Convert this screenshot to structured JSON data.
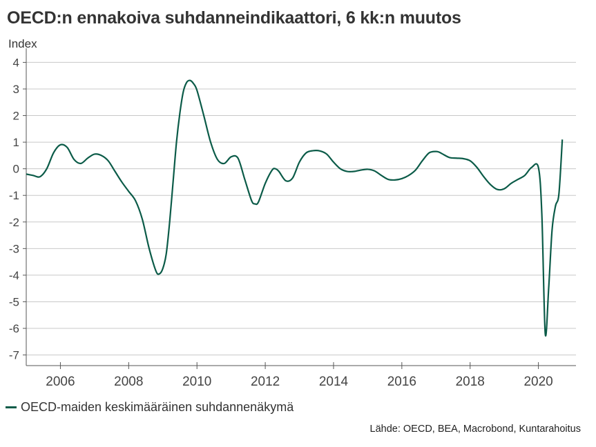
{
  "chart_data": {
    "type": "line",
    "title": "OECD:n ennakoiva suhdanneindikaattori, 6 kk:n muutos",
    "ylabel": "Index",
    "xlabel": "",
    "ylim": [
      -7.4,
      4.4
    ],
    "xlim": [
      2005.0,
      2021.1
    ],
    "yticks": [
      4,
      3,
      2,
      1,
      0,
      -1,
      -2,
      -3,
      -4,
      -5,
      -6,
      -7
    ],
    "ytick_labels": [
      "4",
      "3",
      "2",
      "1",
      "0",
      "-1",
      "-2",
      "-3",
      "-4",
      "-5",
      "-6",
      "-7"
    ],
    "xticks": [
      2006,
      2008,
      2010,
      2012,
      2014,
      2016,
      2018,
      2020
    ],
    "xtick_labels": [
      "2006",
      "2008",
      "2010",
      "2012",
      "2014",
      "2016",
      "2018",
      "2020"
    ],
    "grid": "horizontal",
    "legend_position": "bottom-left",
    "source": "Lähde: OECD, BEA, Macrobond, Kuntarahoitus",
    "series": [
      {
        "name": "OECD-maiden keskimääräinen suhdannenäkymä",
        "color": "#0b5b48",
        "x": [
          2005.0,
          2005.2,
          2005.4,
          2005.6,
          2005.8,
          2006.0,
          2006.2,
          2006.4,
          2006.6,
          2006.8,
          2007.0,
          2007.2,
          2007.4,
          2007.6,
          2007.8,
          2008.0,
          2008.2,
          2008.4,
          2008.6,
          2008.8,
          2008.9,
          2009.0,
          2009.1,
          2009.2,
          2009.3,
          2009.4,
          2009.5,
          2009.6,
          2009.7,
          2009.8,
          2009.9,
          2010.0,
          2010.2,
          2010.4,
          2010.6,
          2010.8,
          2011.0,
          2011.2,
          2011.4,
          2011.6,
          2011.7,
          2011.8,
          2012.0,
          2012.2,
          2012.3,
          2012.4,
          2012.6,
          2012.8,
          2013.0,
          2013.2,
          2013.4,
          2013.6,
          2013.8,
          2014.0,
          2014.2,
          2014.4,
          2014.6,
          2014.8,
          2015.0,
          2015.2,
          2015.4,
          2015.6,
          2015.8,
          2016.0,
          2016.2,
          2016.4,
          2016.6,
          2016.8,
          2017.0,
          2017.1,
          2017.2,
          2017.4,
          2017.6,
          2017.8,
          2018.0,
          2018.2,
          2018.4,
          2018.6,
          2018.8,
          2019.0,
          2019.2,
          2019.4,
          2019.6,
          2019.8,
          2020.0,
          2020.1,
          2020.2,
          2020.3,
          2020.4,
          2020.5,
          2020.6,
          2020.7
        ],
        "values": [
          -0.2,
          -0.25,
          -0.3,
          0.0,
          0.6,
          0.9,
          0.8,
          0.35,
          0.2,
          0.4,
          0.55,
          0.5,
          0.3,
          -0.1,
          -0.5,
          -0.85,
          -1.2,
          -1.9,
          -3.0,
          -3.85,
          -3.95,
          -3.75,
          -3.2,
          -2.0,
          -0.5,
          1.0,
          2.1,
          2.9,
          3.25,
          3.32,
          3.2,
          2.95,
          2.0,
          1.0,
          0.35,
          0.2,
          0.45,
          0.4,
          -0.4,
          -1.2,
          -1.32,
          -1.25,
          -0.55,
          -0.05,
          0.0,
          -0.1,
          -0.45,
          -0.35,
          0.25,
          0.6,
          0.68,
          0.67,
          0.55,
          0.25,
          0.0,
          -0.1,
          -0.1,
          -0.05,
          -0.02,
          -0.08,
          -0.25,
          -0.4,
          -0.42,
          -0.37,
          -0.25,
          -0.05,
          0.3,
          0.6,
          0.65,
          0.62,
          0.55,
          0.42,
          0.4,
          0.38,
          0.3,
          0.05,
          -0.3,
          -0.6,
          -0.78,
          -0.75,
          -0.55,
          -0.4,
          -0.25,
          0.05,
          0.05,
          -1.7,
          -6.2,
          -4.5,
          -2.3,
          -1.4,
          -0.95,
          1.1
        ]
      }
    ]
  }
}
